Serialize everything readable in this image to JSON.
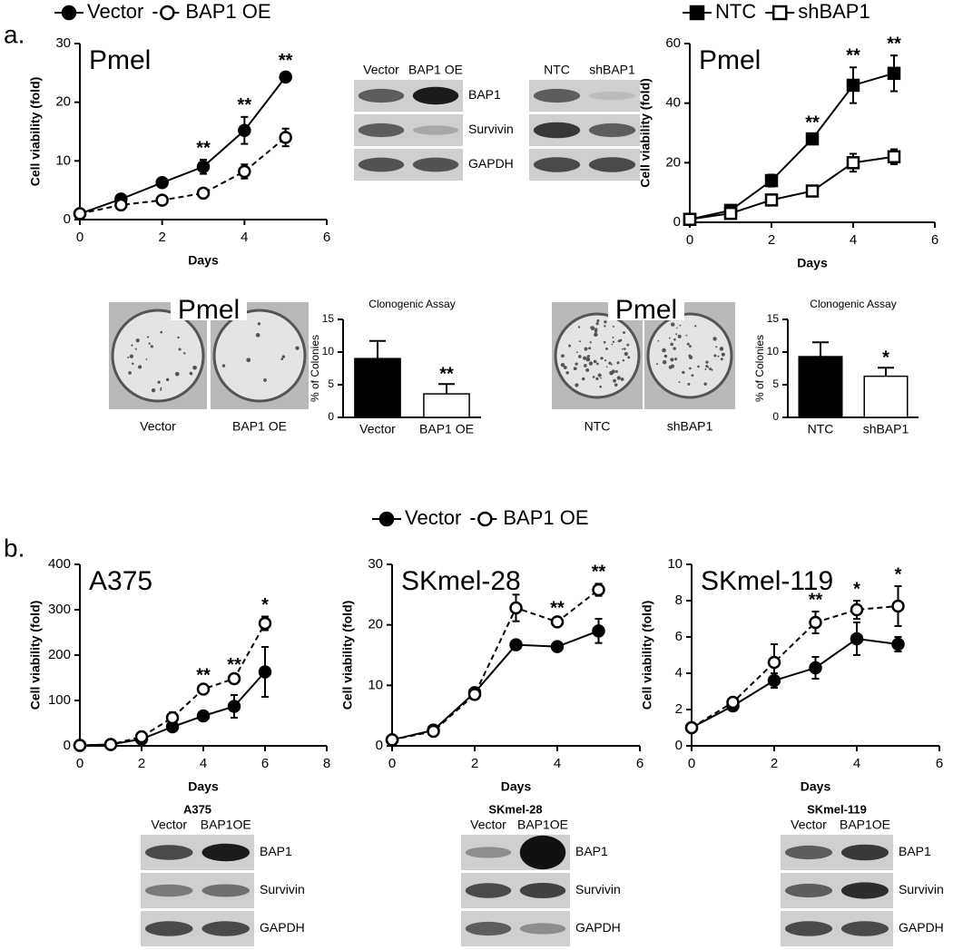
{
  "panels": [
    "a.",
    "b."
  ],
  "chart_data": [
    {
      "type": "line",
      "title": "Pmel",
      "xlabel": "Days",
      "ylabel": "Cell viability (fold)",
      "legend": "top",
      "x": [
        0,
        1,
        2,
        3,
        4,
        5
      ],
      "xlim": [
        0,
        6
      ],
      "xticks": [
        0,
        2,
        4,
        6
      ],
      "ylim": [
        0,
        30
      ],
      "yticks": [
        0,
        10,
        20,
        30
      ],
      "series": [
        {
          "name": "Vector",
          "color": "#000000",
          "line_style": "solid",
          "marker": "filled",
          "marker_shape": "circle",
          "values": [
            1,
            3.5,
            6.3,
            9,
            15.2,
            24.3
          ],
          "error": [
            0.2,
            0.6,
            0.8,
            1.2,
            2.3,
            0.8
          ]
        },
        {
          "name": "BAP1 OE",
          "color": "#000000",
          "line_style": "dashed",
          "marker": "open",
          "marker_shape": "circle",
          "values": [
            1,
            2.5,
            3.3,
            4.5,
            8.2,
            14
          ],
          "error": [
            0.2,
            0.3,
            0.3,
            0.5,
            1.2,
            1.5
          ]
        }
      ],
      "annotations": [
        {
          "x": 3,
          "text": "**"
        },
        {
          "x": 4,
          "text": "**"
        },
        {
          "x": 5,
          "text": "**"
        }
      ]
    },
    {
      "type": "line",
      "title": "Pmel",
      "xlabel": "Days",
      "ylabel": "Cell viability (fold)",
      "legend": "top",
      "x": [
        0,
        1,
        2,
        3,
        4,
        5
      ],
      "xlim": [
        0,
        6
      ],
      "xticks": [
        0,
        2,
        4,
        6
      ],
      "ylim": [
        0,
        60
      ],
      "yticks": [
        0,
        20,
        40,
        60
      ],
      "series": [
        {
          "name": "NTC",
          "color": "#000000",
          "line_style": "solid",
          "marker": "filled",
          "marker_shape": "square",
          "values": [
            1,
            4,
            14,
            28,
            46,
            50
          ],
          "error": [
            0.5,
            1.2,
            2,
            1.5,
            6,
            6
          ]
        },
        {
          "name": "shBAP1",
          "color": "#000000",
          "line_style": "solid",
          "marker": "open",
          "marker_shape": "square",
          "values": [
            1,
            3,
            7.5,
            10.5,
            20,
            22
          ],
          "error": [
            0.3,
            0.5,
            0.8,
            1,
            3,
            2.5
          ]
        }
      ],
      "annotations": [
        {
          "x": 3,
          "text": "**"
        },
        {
          "x": 4,
          "text": "**"
        },
        {
          "x": 5,
          "text": "**"
        }
      ]
    },
    {
      "type": "bar",
      "title": "Clonogenic Assay",
      "ylabel": "% of Colonies",
      "categories": [
        "Vector",
        "BAP1 OE"
      ],
      "values": [
        9,
        3.6
      ],
      "error": [
        2.7,
        1.5
      ],
      "colors": [
        "#000000",
        "#ffffff"
      ],
      "ylim": [
        0,
        15
      ],
      "yticks": [
        0,
        5,
        10,
        15
      ],
      "annotations": [
        {
          "x": "BAP1 OE",
          "text": "**"
        }
      ]
    },
    {
      "type": "bar",
      "title": "Clonogenic Assay",
      "ylabel": "% of Colonies",
      "categories": [
        "NTC",
        "shBAP1"
      ],
      "values": [
        9.3,
        6.3
      ],
      "error": [
        2.2,
        1.3
      ],
      "colors": [
        "#000000",
        "#ffffff"
      ],
      "ylim": [
        0,
        15
      ],
      "yticks": [
        0,
        5,
        10,
        15
      ],
      "annotations": [
        {
          "x": "shBAP1",
          "text": "*"
        }
      ]
    },
    {
      "type": "line",
      "title": "A375",
      "xlabel": "Days",
      "ylabel": "Cell viability (fold)",
      "legend": "top",
      "x": [
        0,
        1,
        2,
        3,
        4,
        5,
        6
      ],
      "xlim": [
        0,
        8
      ],
      "xticks": [
        0,
        2,
        4,
        6,
        8
      ],
      "ylim": [
        0,
        400
      ],
      "yticks": [
        0,
        100,
        200,
        300,
        400
      ],
      "series": [
        {
          "name": "Vector",
          "color": "#000000",
          "line_style": "solid",
          "marker": "filled",
          "marker_shape": "circle",
          "values": [
            1,
            3,
            15,
            42,
            66,
            87,
            163
          ],
          "error": [
            1,
            2,
            3,
            10,
            3,
            25,
            55
          ]
        },
        {
          "name": "BAP1 OE",
          "color": "#000000",
          "line_style": "dashed",
          "marker": "open",
          "marker_shape": "circle",
          "values": [
            1,
            3,
            20,
            62,
            125,
            148,
            270
          ],
          "error": [
            1,
            2,
            3,
            12,
            5,
            5,
            15
          ]
        }
      ],
      "annotations": [
        {
          "x": 4,
          "text": "**"
        },
        {
          "x": 5,
          "text": "**"
        },
        {
          "x": 6,
          "text": "*"
        }
      ]
    },
    {
      "type": "line",
      "title": "SKmel-28",
      "xlabel": "Days",
      "ylabel": "Cell viability (fold)",
      "x": [
        0,
        1,
        2,
        3,
        4,
        5
      ],
      "xlim": [
        0,
        6
      ],
      "xticks": [
        0,
        2,
        4,
        6
      ],
      "ylim": [
        0,
        30
      ],
      "yticks": [
        0,
        10,
        20,
        30
      ],
      "series": [
        {
          "color": "#000000",
          "line_style": "solid",
          "marker": "filled",
          "marker_shape": "circle",
          "values": [
            1,
            2.6,
            8.8,
            16.7,
            16.4,
            19
          ],
          "error": [
            0.3,
            0.3,
            0.8,
            0.6,
            0.2,
            2
          ]
        },
        {
          "color": "#000000",
          "line_style": "dashed",
          "marker": "open",
          "marker_shape": "circle",
          "values": [
            1,
            2.4,
            8.5,
            22.8,
            20.5,
            25.8
          ],
          "error": [
            0.3,
            0.3,
            0.8,
            2.2,
            0.3,
            1
          ]
        }
      ],
      "annotations": [
        {
          "x": 4,
          "text": "**"
        },
        {
          "x": 5,
          "text": "**"
        }
      ]
    },
    {
      "type": "line",
      "title": "SKmel-119",
      "xlabel": "Days",
      "ylabel": "Cell viability (fold)",
      "x": [
        0,
        1,
        2,
        3,
        4,
        5
      ],
      "xlim": [
        0,
        6
      ],
      "xticks": [
        0,
        2,
        4,
        6
      ],
      "ylim": [
        0,
        10
      ],
      "yticks": [
        0,
        2,
        4,
        6,
        8,
        10
      ],
      "series": [
        {
          "color": "#000000",
          "line_style": "solid",
          "marker": "filled",
          "marker_shape": "circle",
          "values": [
            1,
            2.2,
            3.6,
            4.3,
            5.9,
            5.6
          ],
          "error": [
            0.1,
            0.2,
            0.4,
            0.6,
            0.9,
            0.4
          ]
        },
        {
          "color": "#000000",
          "line_style": "dashed",
          "marker": "open",
          "marker_shape": "circle",
          "values": [
            1,
            2.4,
            4.6,
            6.8,
            7.5,
            7.7
          ],
          "error": [
            0.1,
            0.2,
            1,
            0.6,
            0.5,
            1.1
          ]
        }
      ],
      "annotations": [
        {
          "x": 3,
          "text": "**"
        },
        {
          "x": 4,
          "text": "*"
        },
        {
          "x": 5,
          "text": "*"
        }
      ]
    }
  ],
  "images": [
    {
      "title": "Pmel",
      "captions": [
        "Vector",
        "BAP1 OE"
      ]
    },
    {
      "title": "Pmel",
      "captions": [
        "NTC",
        "shBAP1"
      ]
    }
  ],
  "blots": [
    {
      "lanes": [
        "Vector",
        "BAP1 OE"
      ],
      "rows": [
        "BAP1",
        "Survivin",
        "GAPDH"
      ]
    },
    {
      "lanes": [
        "NTC",
        "shBAP1"
      ]
    },
    {
      "title": "A375",
      "lanes": [
        "Vector",
        "BAP1OE"
      ],
      "rows": [
        "BAP1",
        "Survivin",
        "GAPDH"
      ]
    },
    {
      "title": "SKmel-28",
      "lanes": [
        "Vector",
        "BAP1OE"
      ],
      "rows": [
        "BAP1",
        "Survivin",
        "GAPDH"
      ]
    },
    {
      "title": "SKmel-119",
      "lanes": [
        "Vector",
        "BAP1OE"
      ],
      "rows": [
        "BAP1",
        "Survivin",
        "GAPDH"
      ]
    }
  ]
}
